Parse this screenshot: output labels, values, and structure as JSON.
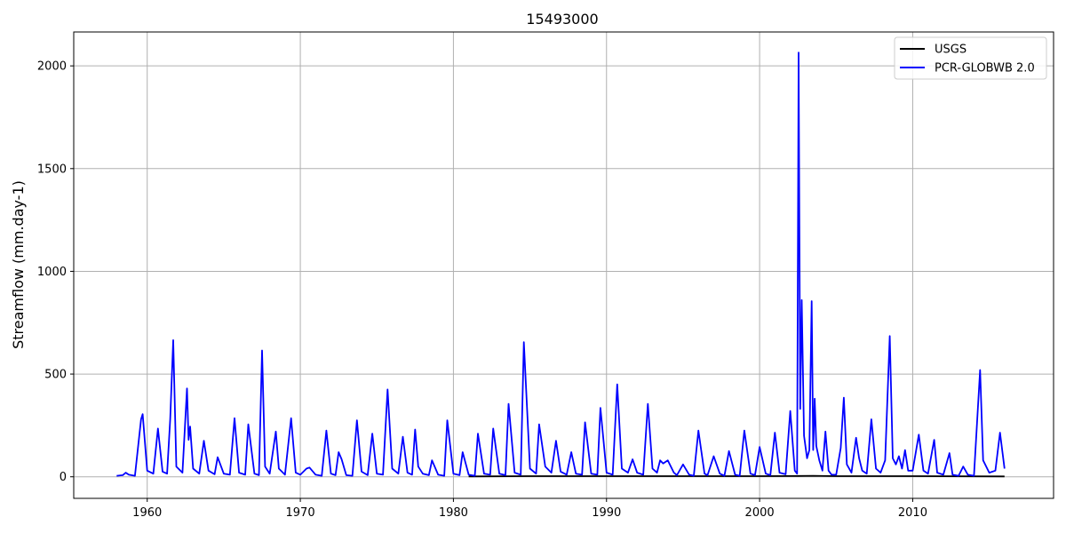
{
  "chart_data": {
    "type": "line",
    "title": "15493000",
    "xlabel": "",
    "ylabel": "Streamflow (mm.day-1)",
    "xlim": [
      1955.2,
      2019.2
    ],
    "ylim": [
      -105,
      2165
    ],
    "xticks": [
      1960,
      1970,
      1980,
      1990,
      2000,
      2010
    ],
    "yticks": [
      0,
      500,
      1000,
      1500,
      2000
    ],
    "grid": true,
    "legend_position": "top-right",
    "series": [
      {
        "name": "USGS",
        "color": "#000000",
        "x": [
          1981.0,
          1985.0,
          1990.0,
          1995.0,
          2000.0,
          2002.5,
          2003.5,
          2005.0,
          2010.0,
          2016.0
        ],
        "y": [
          2,
          3,
          3,
          3,
          3,
          4,
          5,
          3,
          3,
          2
        ]
      },
      {
        "name": "PCR-GLOBWB 2.0",
        "color": "#0000ff",
        "x": [
          1958.0,
          1958.4,
          1958.6,
          1958.8,
          1959.2,
          1959.6,
          1959.7,
          1960.0,
          1960.4,
          1960.7,
          1961.0,
          1961.3,
          1961.5,
          1961.7,
          1961.9,
          1962.3,
          1962.6,
          1962.7,
          1962.8,
          1963.0,
          1963.4,
          1963.7,
          1964.0,
          1964.4,
          1964.6,
          1965.0,
          1965.4,
          1965.7,
          1966.0,
          1966.4,
          1966.6,
          1967.0,
          1967.3,
          1967.5,
          1967.7,
          1968.0,
          1968.4,
          1968.6,
          1969.0,
          1969.4,
          1969.7,
          1970.0,
          1970.4,
          1970.6,
          1971.0,
          1971.4,
          1971.7,
          1972.0,
          1972.3,
          1972.5,
          1972.7,
          1973.0,
          1973.4,
          1973.7,
          1974.0,
          1974.4,
          1974.7,
          1975.0,
          1975.4,
          1975.7,
          1976.0,
          1976.4,
          1976.7,
          1977.0,
          1977.3,
          1977.5,
          1977.7,
          1978.0,
          1978.4,
          1978.6,
          1979.0,
          1979.4,
          1979.6,
          1980.0,
          1980.4,
          1980.6,
          1981.0,
          1981.4,
          1981.6,
          1982.0,
          1982.4,
          1982.6,
          1983.0,
          1983.4,
          1983.6,
          1984.0,
          1984.4,
          1984.6,
          1985.0,
          1985.4,
          1985.6,
          1986.0,
          1986.4,
          1986.7,
          1987.0,
          1987.4,
          1987.7,
          1988.0,
          1988.4,
          1988.6,
          1989.0,
          1989.4,
          1989.6,
          1990.0,
          1990.4,
          1990.7,
          1991.0,
          1991.4,
          1991.7,
          1992.0,
          1992.4,
          1992.7,
          1993.0,
          1993.3,
          1993.5,
          1993.7,
          1994.0,
          1994.4,
          1994.6,
          1995.0,
          1995.4,
          1995.7,
          1996.0,
          1996.4,
          1996.6,
          1997.0,
          1997.4,
          1997.7,
          1998.0,
          1998.4,
          1998.7,
          1999.0,
          1999.4,
          1999.7,
          2000.0,
          2000.4,
          2000.7,
          2001.0,
          2001.3,
          2001.7,
          2002.0,
          2002.3,
          2002.45,
          2002.55,
          2002.65,
          2002.75,
          2002.9,
          2003.1,
          2003.25,
          2003.4,
          2003.5,
          2003.6,
          2003.7,
          2003.9,
          2004.1,
          2004.3,
          2004.5,
          2004.7,
          2005.0,
          2005.3,
          2005.5,
          2005.7,
          2006.0,
          2006.3,
          2006.5,
          2006.7,
          2007.0,
          2007.3,
          2007.6,
          2007.9,
          2008.2,
          2008.5,
          2008.7,
          2008.9,
          2009.1,
          2009.3,
          2009.5,
          2009.7,
          2010.0,
          2010.4,
          2010.7,
          2011.0,
          2011.4,
          2011.6,
          2012.0,
          2012.4,
          2012.6,
          2013.0,
          2013.3,
          2013.6,
          2014.0,
          2014.4,
          2014.6,
          2015.0,
          2015.4,
          2015.7,
          2016.0
        ],
        "y": [
          5,
          8,
          20,
          10,
          5,
          280,
          305,
          30,
          15,
          235,
          25,
          15,
          280,
          665,
          50,
          20,
          430,
          180,
          245,
          40,
          15,
          175,
          30,
          12,
          95,
          15,
          10,
          285,
          20,
          10,
          255,
          15,
          8,
          615,
          50,
          15,
          220,
          40,
          10,
          285,
          20,
          10,
          40,
          45,
          10,
          5,
          225,
          15,
          8,
          120,
          85,
          8,
          5,
          275,
          25,
          8,
          210,
          15,
          10,
          425,
          40,
          15,
          195,
          20,
          10,
          230,
          50,
          15,
          8,
          80,
          10,
          5,
          275,
          15,
          8,
          120,
          10,
          5,
          210,
          15,
          10,
          235,
          15,
          8,
          355,
          20,
          10,
          655,
          40,
          15,
          255,
          50,
          20,
          175,
          25,
          10,
          120,
          15,
          10,
          265,
          15,
          10,
          335,
          20,
          10,
          450,
          40,
          20,
          85,
          20,
          10,
          355,
          40,
          20,
          80,
          65,
          80,
          20,
          8,
          60,
          10,
          5,
          225,
          15,
          8,
          100,
          15,
          5,
          125,
          10,
          5,
          225,
          15,
          8,
          145,
          15,
          8,
          215,
          20,
          12,
          320,
          30,
          15,
          2065,
          330,
          860,
          200,
          90,
          130,
          855,
          130,
          380,
          150,
          80,
          30,
          220,
          30,
          10,
          10,
          140,
          385,
          60,
          20,
          190,
          90,
          30,
          15,
          280,
          40,
          20,
          80,
          685,
          90,
          60,
          100,
          40,
          130,
          30,
          30,
          205,
          30,
          15,
          180,
          20,
          10,
          115,
          10,
          5,
          50,
          10,
          5,
          520,
          80,
          20,
          30,
          215,
          40
        ]
      }
    ]
  }
}
